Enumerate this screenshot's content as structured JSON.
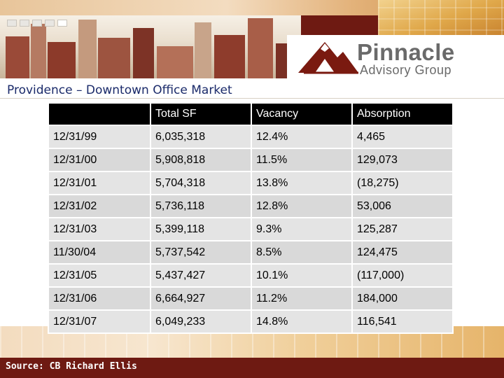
{
  "banner": {
    "logo_name": "Pinnacle",
    "logo_sub": "Advisory Group",
    "logo_icon": "mountain-peak-icon",
    "accent": "#6e1a12",
    "gold": "#e0a84a"
  },
  "title": "Providence – Downtown Office Market",
  "table": {
    "headers": [
      "",
      "Total SF",
      "Vacancy",
      "Absorption"
    ],
    "rows": [
      [
        "12/31/99",
        "6,035,318",
        "12.4%",
        "4,465"
      ],
      [
        "12/31/00",
        "5,908,818",
        "11.5%",
        "129,073"
      ],
      [
        "12/31/01",
        "5,704,318",
        "13.8%",
        "(18,275)"
      ],
      [
        "12/31/02",
        "5,736,118",
        "12.8%",
        "53,006"
      ],
      [
        "12/31/03",
        "5,399,118",
        "9.3%",
        "125,287"
      ],
      [
        "11/30/04",
        "5,737,542",
        "8.5%",
        "124,475"
      ],
      [
        "12/31/05",
        "5,437,427",
        "10.1%",
        "(117,000)"
      ],
      [
        "12/31/06",
        "6,664,927",
        "11.2%",
        "184,000"
      ],
      [
        "12/31/07",
        "6,049,233",
        "14.8%",
        "116,541"
      ]
    ]
  },
  "footer": {
    "source": "Source: CB Richard Ellis"
  }
}
